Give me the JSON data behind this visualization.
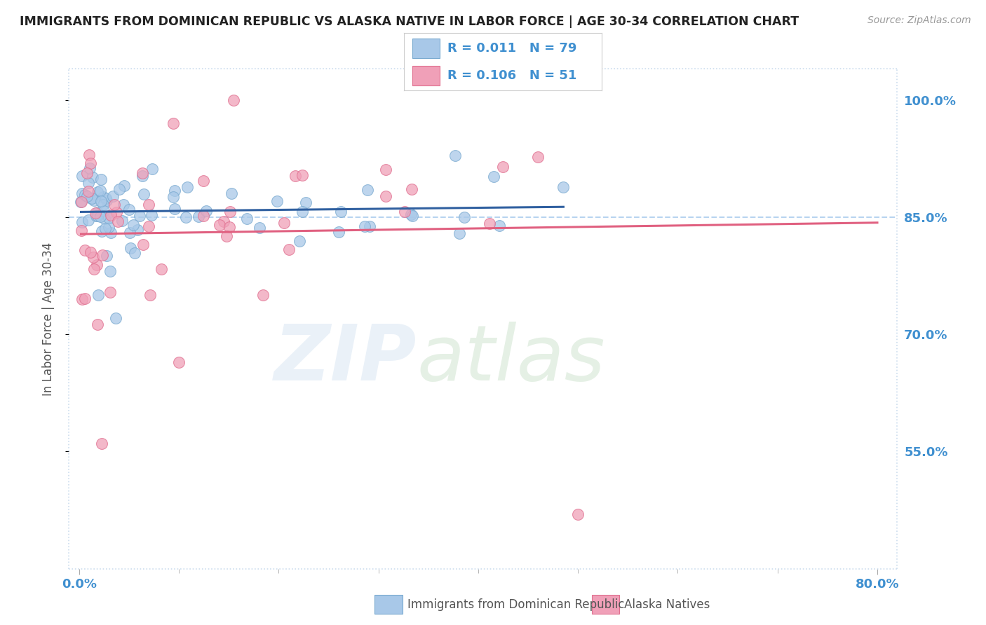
{
  "title": "IMMIGRANTS FROM DOMINICAN REPUBLIC VS ALASKA NATIVE IN LABOR FORCE | AGE 30-34 CORRELATION CHART",
  "source": "Source: ZipAtlas.com",
  "xlabel_blue": "Immigrants from Dominican Republic",
  "xlabel_pink": "Alaska Natives",
  "ylabel": "In Labor Force | Age 30-34",
  "xlim": [
    -0.01,
    0.82
  ],
  "ylim": [
    0.4,
    1.04
  ],
  "blue_R": 0.011,
  "blue_N": 79,
  "pink_R": 0.106,
  "pink_N": 51,
  "blue_color": "#a8c8e8",
  "pink_color": "#f0a0b8",
  "blue_edge_color": "#7aaad0",
  "pink_edge_color": "#e07090",
  "blue_line_color": "#3060a0",
  "pink_line_color": "#e06080",
  "dashed_line_color": "#b8d4f0",
  "dotted_border_color": "#ccddee",
  "background_color": "#ffffff",
  "tick_color": "#4090d0",
  "label_color": "#555555",
  "title_color": "#222222",
  "source_color": "#999999"
}
